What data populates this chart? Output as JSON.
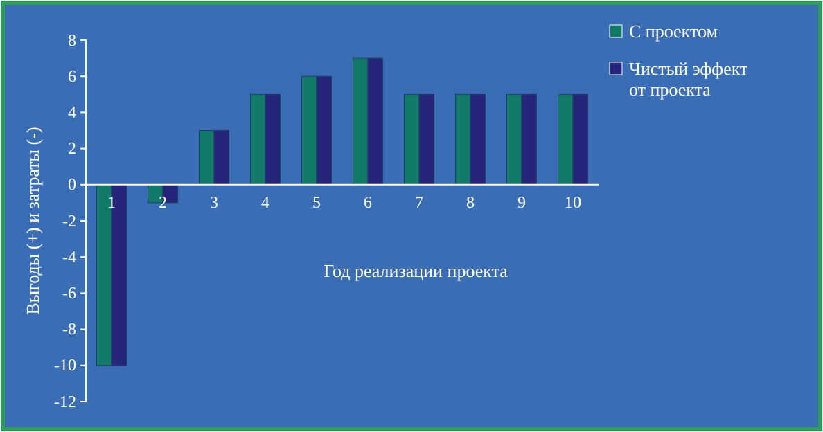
{
  "chart_data": {
    "type": "bar",
    "xlabel": "Год реализации проекта",
    "ylabel": "Выгоды (+) и затраты (-)",
    "categories": [
      "1",
      "2",
      "3",
      "4",
      "5",
      "6",
      "7",
      "8",
      "9",
      "10"
    ],
    "series": [
      {
        "name": "С проектом",
        "color": "#137a6a",
        "values": [
          -10,
          -1,
          3,
          5,
          6,
          7,
          5,
          5,
          5,
          5
        ]
      },
      {
        "name": "Чистый эффект от проекта",
        "color": "#25257a",
        "values": [
          -10,
          -1,
          3,
          5,
          6,
          7,
          5,
          5,
          5,
          5
        ]
      }
    ],
    "ylim": [
      -12,
      8
    ],
    "yticks": [
      -12,
      -10,
      -8,
      -6,
      -4,
      -2,
      0,
      2,
      4,
      6,
      8
    ],
    "grid": false,
    "legend": "right"
  }
}
